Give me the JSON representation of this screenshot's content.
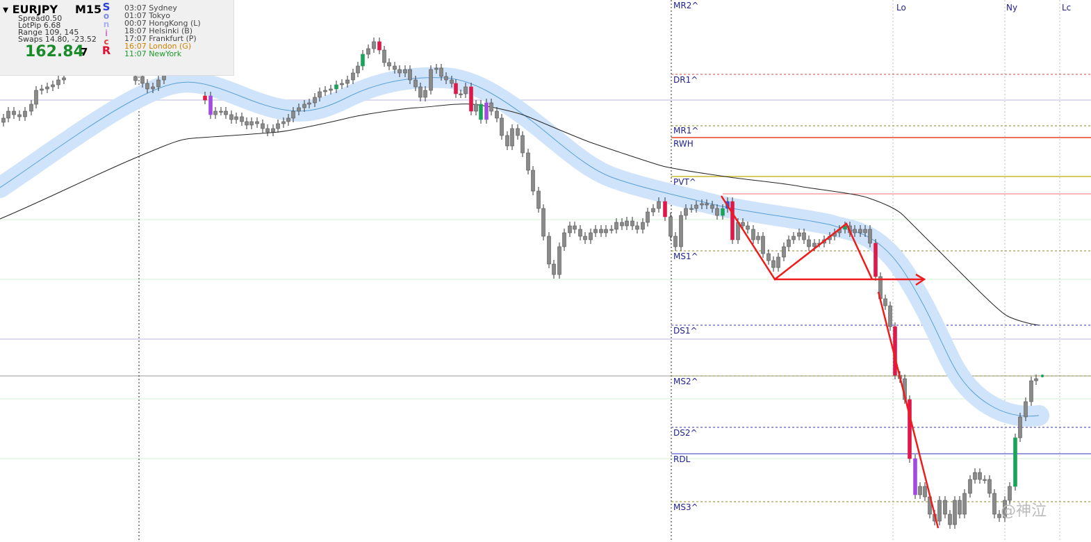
{
  "panel": {
    "symbol": "EURJPY",
    "timeframe": "M15",
    "brand": [
      "S",
      "o",
      "n",
      "i",
      "c",
      "R"
    ],
    "stats": [
      "Spread0.50",
      "LotPip 6.68",
      "Range 109, 145",
      "Swaps 14.80, -23.52"
    ],
    "price": "162.84",
    "spread_points": "7",
    "sessions": [
      "03:07 Sydney",
      "01:07 Tokyo",
      "00:07 HongKong  (L)",
      "18:07 Helsinki  (B)",
      "17:07 Frankfurt  (P)",
      "16:07 London  (G)",
      "11:07 NewYork"
    ]
  },
  "levels": [
    "MR2^",
    "DR1^",
    "MR1^",
    "RWH",
    "PVT^",
    "MS1^",
    "DS1^",
    "MS2^",
    "DS2^",
    "RDL",
    "MS3^"
  ],
  "session_markers": [
    "Lo",
    "Ny",
    "Lc"
  ],
  "watermark": "@神泣"
}
